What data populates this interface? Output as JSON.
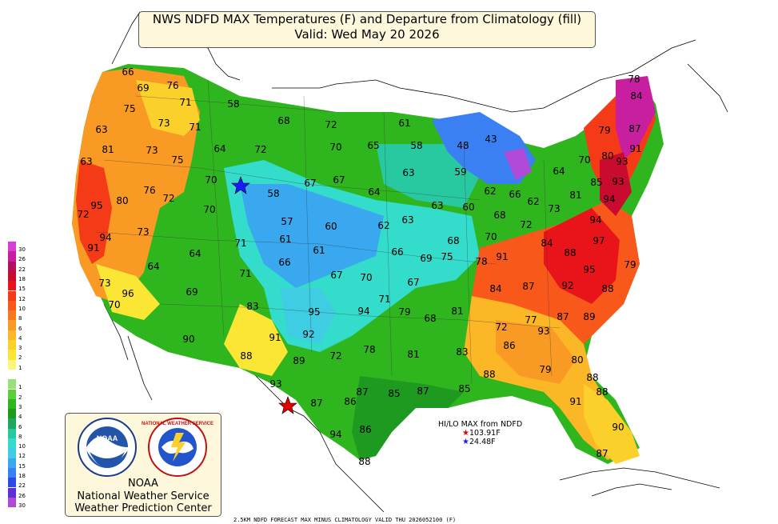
{
  "title": {
    "line1": "NWS NDFD MAX Temperatures (F) and Departure from Climatology (fill)",
    "line2": "Valid: Wed May 20 2026"
  },
  "logo": {
    "noaa_badge": "NOAA",
    "nws_ring_text": "NATIONAL WEATHER SERVICE",
    "noaa_ring_text": "NATIONAL OCEANIC AND ATMOSPHERIC ADMINISTRATION",
    "line1": "NOAA",
    "line2": "National Weather Service",
    "line3": "Weather Prediction Center"
  },
  "hilo": {
    "heading": "HI/LO MAX from NDFD",
    "hi": "103.91F",
    "lo": "24.48F",
    "hi_color": "#e00000",
    "lo_color": "#1a1aff"
  },
  "footer": "2.5KM NDFD FORECAST MAX MINUS CLIMATOLOGY VALID THU 2026052100 (F)",
  "legend": [
    {
      "label": "30",
      "color": "#d63fd6"
    },
    {
      "label": "26",
      "color": "#c71fa0"
    },
    {
      "label": "22",
      "color": "#b30f5a"
    },
    {
      "label": "18",
      "color": "#c80b2e"
    },
    {
      "label": "15",
      "color": "#e8141a"
    },
    {
      "label": "12",
      "color": "#f53a18"
    },
    {
      "label": "10",
      "color": "#f8581a"
    },
    {
      "label": "8",
      "color": "#f7791f"
    },
    {
      "label": "6",
      "color": "#f99a25"
    },
    {
      "label": "4",
      "color": "#fbb726"
    },
    {
      "label": "3",
      "color": "#fbd02a"
    },
    {
      "label": "2",
      "color": "#fbe535"
    },
    {
      "label": "1",
      "color": "#fdf47a"
    },
    {
      "label": "",
      "color": "#ffffff"
    },
    {
      "label": "1",
      "color": "#98e07a"
    },
    {
      "label": "2",
      "color": "#5ccf38"
    },
    {
      "label": "3",
      "color": "#2fb51d"
    },
    {
      "label": "4",
      "color": "#1f9a20"
    },
    {
      "label": "6",
      "color": "#20a860"
    },
    {
      "label": "8",
      "color": "#28c9a0"
    },
    {
      "label": "10",
      "color": "#33dccb"
    },
    {
      "label": "12",
      "color": "#3fcde3"
    },
    {
      "label": "15",
      "color": "#39a8ef"
    },
    {
      "label": "18",
      "color": "#3a80f2"
    },
    {
      "label": "22",
      "color": "#2e4ae6"
    },
    {
      "label": "26",
      "color": "#5c2fd8"
    },
    {
      "label": "30",
      "color": "#b04ad6"
    }
  ],
  "temperatures": [
    {
      "t": "66"
    },
    {
      "t": "69"
    },
    {
      "t": "76"
    },
    {
      "t": "71"
    },
    {
      "t": "75"
    },
    {
      "t": "58"
    },
    {
      "t": "73"
    },
    {
      "t": "71"
    },
    {
      "t": "63"
    },
    {
      "t": "68"
    },
    {
      "t": "72"
    },
    {
      "t": "61"
    },
    {
      "t": "81"
    },
    {
      "t": "73"
    },
    {
      "t": "64"
    },
    {
      "t": "72"
    },
    {
      "t": "70"
    },
    {
      "t": "65"
    },
    {
      "t": "58"
    },
    {
      "t": "48"
    },
    {
      "t": "43"
    },
    {
      "t": "79"
    },
    {
      "t": "87"
    },
    {
      "t": "84"
    },
    {
      "t": "78"
    },
    {
      "t": "63"
    },
    {
      "t": "75"
    },
    {
      "t": "70"
    },
    {
      "t": "67"
    },
    {
      "t": "67"
    },
    {
      "t": "63"
    },
    {
      "t": "59"
    },
    {
      "t": "64"
    },
    {
      "t": "70"
    },
    {
      "t": "80"
    },
    {
      "t": "91"
    },
    {
      "t": "93"
    },
    {
      "t": "76"
    },
    {
      "t": "72"
    },
    {
      "t": "58"
    },
    {
      "t": "64"
    },
    {
      "t": "62"
    },
    {
      "t": "66"
    },
    {
      "t": "85"
    },
    {
      "t": "93"
    },
    {
      "t": "80"
    },
    {
      "t": "95"
    },
    {
      "t": "70"
    },
    {
      "t": "57"
    },
    {
      "t": "60"
    },
    {
      "t": "62"
    },
    {
      "t": "63"
    },
    {
      "t": "63"
    },
    {
      "t": "60"
    },
    {
      "t": "62"
    },
    {
      "t": "73"
    },
    {
      "t": "81"
    },
    {
      "t": "94"
    },
    {
      "t": "72"
    },
    {
      "t": "73"
    },
    {
      "t": "61"
    },
    {
      "t": "68"
    },
    {
      "t": "72"
    },
    {
      "t": "94"
    },
    {
      "t": "94"
    },
    {
      "t": "71"
    },
    {
      "t": "61"
    },
    {
      "t": "68"
    },
    {
      "t": "70"
    },
    {
      "t": "84"
    },
    {
      "t": "97"
    },
    {
      "t": "91"
    },
    {
      "t": "64"
    },
    {
      "t": "66"
    },
    {
      "t": "66"
    },
    {
      "t": "69"
    },
    {
      "t": "75"
    },
    {
      "t": "78"
    },
    {
      "t": "91"
    },
    {
      "t": "88"
    },
    {
      "t": "64"
    },
    {
      "t": "67"
    },
    {
      "t": "70"
    },
    {
      "t": "67"
    },
    {
      "t": "95"
    },
    {
      "t": "79"
    },
    {
      "t": "71"
    },
    {
      "t": "73"
    },
    {
      "t": "96"
    },
    {
      "t": "69"
    },
    {
      "t": "84"
    },
    {
      "t": "87"
    },
    {
      "t": "92"
    },
    {
      "t": "88"
    },
    {
      "t": "70"
    },
    {
      "t": "83"
    },
    {
      "t": "71"
    },
    {
      "t": "79"
    },
    {
      "t": "81"
    },
    {
      "t": "95"
    },
    {
      "t": "94"
    },
    {
      "t": "68"
    },
    {
      "t": "72"
    },
    {
      "t": "77"
    },
    {
      "t": "87"
    },
    {
      "t": "89"
    },
    {
      "t": "93"
    },
    {
      "t": "90"
    },
    {
      "t": "91"
    },
    {
      "t": "92"
    },
    {
      "t": "78"
    },
    {
      "t": "72"
    },
    {
      "t": "81"
    },
    {
      "t": "83"
    },
    {
      "t": "86"
    },
    {
      "t": "89"
    },
    {
      "t": "88"
    },
    {
      "t": "80"
    },
    {
      "t": "79"
    },
    {
      "t": "93"
    },
    {
      "t": "88"
    },
    {
      "t": "88"
    },
    {
      "t": "87"
    },
    {
      "t": "85"
    },
    {
      "t": "86"
    },
    {
      "t": "87"
    },
    {
      "t": "85"
    },
    {
      "t": "88"
    },
    {
      "t": "87"
    },
    {
      "t": "91"
    },
    {
      "t": "90"
    },
    {
      "t": "86"
    },
    {
      "t": "94"
    },
    {
      "t": "88"
    },
    {
      "t": "87"
    },
    {
      "t": "92"
    },
    {
      "t": "89"
    }
  ],
  "markers": {
    "hi_star_color": "#e00000",
    "lo_star_color": "#1a1aff"
  }
}
